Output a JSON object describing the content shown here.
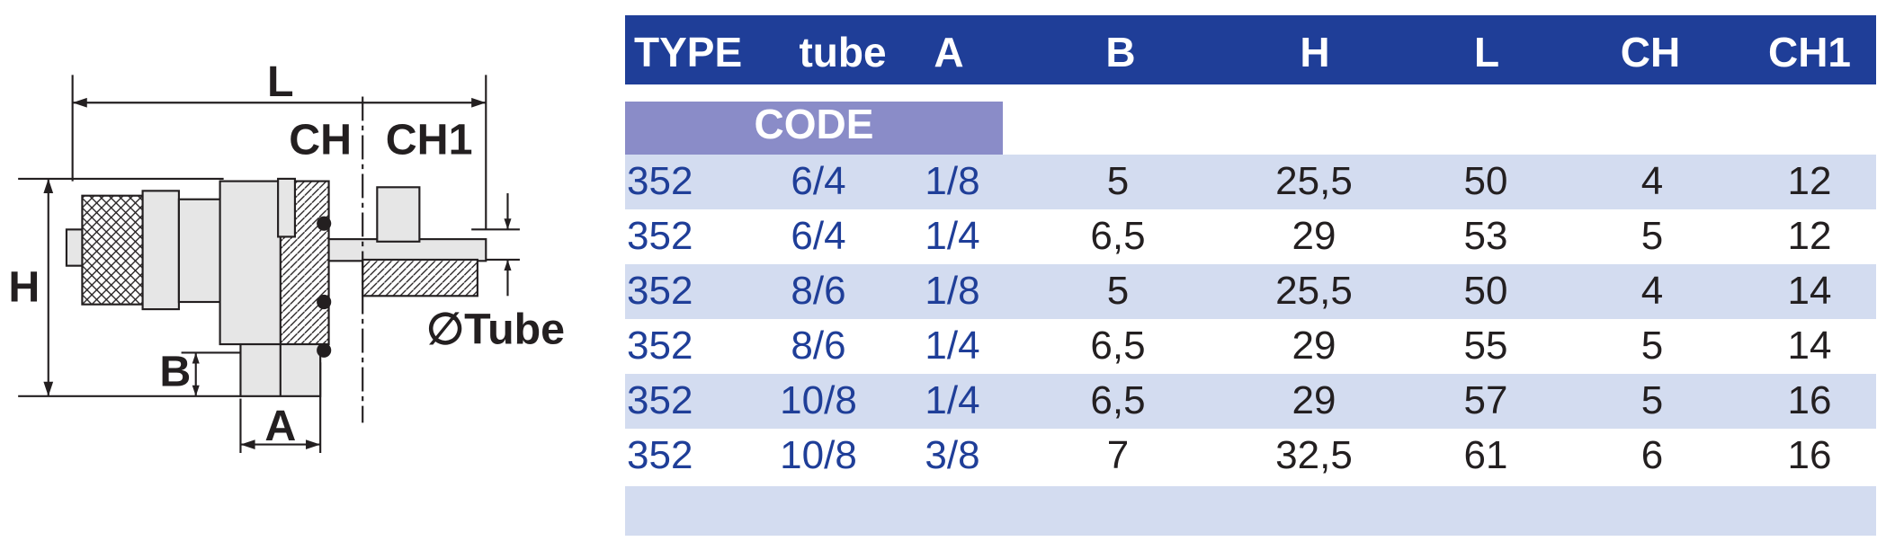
{
  "diagram": {
    "labels": {
      "L": "L",
      "CH": "CH",
      "CH1": "CH1",
      "H": "H",
      "B": "B",
      "A": "A",
      "tube": "∅Tube"
    }
  },
  "header": {
    "columns": [
      "TYPE",
      "tube",
      "A",
      "B",
      "H",
      "L",
      "CH",
      "CH1"
    ],
    "code": "CODE"
  },
  "table": {
    "rows": [
      [
        "352",
        "6/4",
        "1/8",
        "5",
        "25,5",
        "50",
        "4",
        "12"
      ],
      [
        "352",
        "6/4",
        "1/4",
        "6,5",
        "29",
        "53",
        "5",
        "12"
      ],
      [
        "352",
        "8/6",
        "1/8",
        "5",
        "25,5",
        "50",
        "4",
        "14"
      ],
      [
        "352",
        "8/6",
        "1/4",
        "6,5",
        "29",
        "55",
        "5",
        "14"
      ],
      [
        "352",
        "10/8",
        "1/4",
        "6,5",
        "29",
        "57",
        "5",
        "16"
      ],
      [
        "352",
        "10/8",
        "3/8",
        "7",
        "32,5",
        "61",
        "6",
        "16"
      ]
    ]
  }
}
